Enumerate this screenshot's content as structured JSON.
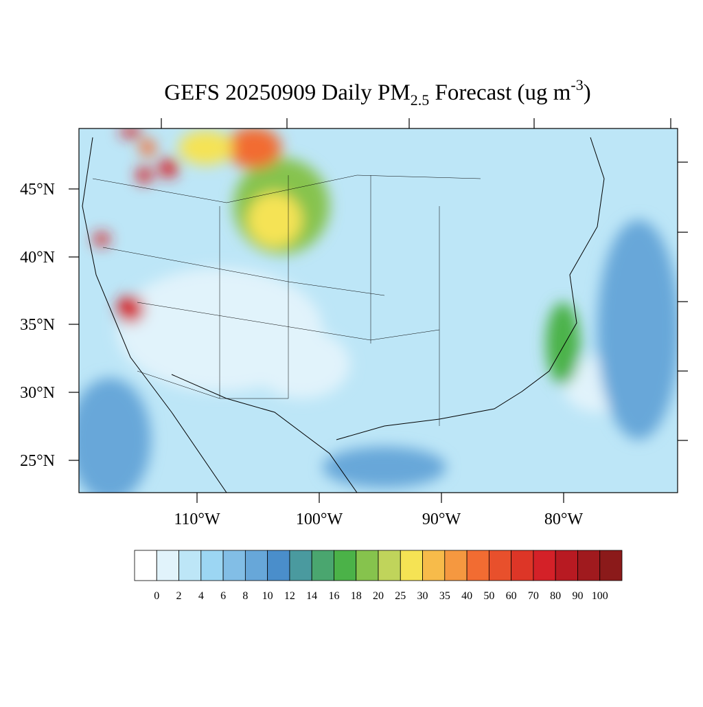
{
  "title": {
    "main": "GEFS 20250909 Daily PM",
    "subscript": "2.5",
    "rest": " Forecast (ug m",
    "superscript": "-3",
    "end": ")"
  },
  "lat_labels": [
    "45°N",
    "40°N",
    "35°N",
    "30°N",
    "25°N"
  ],
  "lon_labels": [
    "110°W",
    "100°W",
    "90°W",
    "80°W"
  ],
  "colorbar": {
    "levels": [
      0,
      2,
      4,
      6,
      8,
      10,
      12,
      14,
      16,
      18,
      20,
      25,
      30,
      35,
      40,
      50,
      60,
      70,
      80,
      90,
      100
    ],
    "colors": [
      "#ffffff",
      "#e1f3fb",
      "#bde6f7",
      "#9cd6f3",
      "#82bee6",
      "#67a7d9",
      "#4a8ecb",
      "#4a9a9f",
      "#4aa66f",
      "#4bb248",
      "#86c34d",
      "#c0d45b",
      "#f5e354",
      "#f7bb4a",
      "#f59840",
      "#f26c32",
      "#e8502c",
      "#dd3627",
      "#d42128",
      "#b81a22",
      "#a01a1e",
      "#8b1a1a"
    ]
  }
}
